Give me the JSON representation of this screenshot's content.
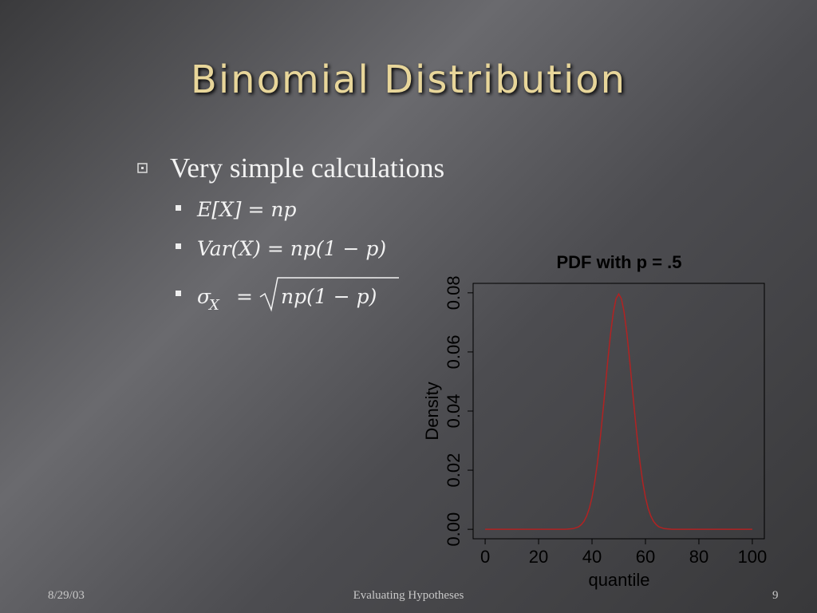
{
  "slide": {
    "title": "Binomial Distribution",
    "bullet": "Very simple calculations",
    "sub_bullets": [
      "E[X] = np",
      "Var(X) = np(1 − p)"
    ],
    "sigma": {
      "symbol": "σ",
      "subscript": "X",
      "equals": "=",
      "radicand": "np(1 − p)"
    },
    "footer": {
      "date": "8/29/03",
      "center": "Evaluating Hypotheses",
      "page": "9"
    }
  },
  "chart_data": {
    "type": "line",
    "title": "PDF with p = .5",
    "x_label": "quantile",
    "y_label": "Density",
    "color": "#b22222",
    "x": [
      0,
      10,
      20,
      30,
      33,
      35,
      36,
      37,
      38,
      39,
      40,
      41,
      42,
      43,
      44,
      45,
      46,
      47,
      48,
      49,
      50,
      51,
      52,
      53,
      54,
      55,
      56,
      57,
      58,
      59,
      60,
      61,
      62,
      63,
      64,
      65,
      67,
      70,
      80,
      90,
      100
    ],
    "values": [
      0,
      0,
      0,
      2e-05,
      0.00023,
      0.00086,
      0.0016,
      0.0027,
      0.0045,
      0.0071,
      0.0108,
      0.0159,
      0.0223,
      0.0301,
      0.039,
      0.0485,
      0.058,
      0.0666,
      0.0735,
      0.078,
      0.0796,
      0.078,
      0.0735,
      0.0666,
      0.058,
      0.0485,
      0.039,
      0.0301,
      0.0223,
      0.0159,
      0.0108,
      0.0071,
      0.0045,
      0.0027,
      0.0016,
      0.00086,
      0.00023,
      2e-05,
      0,
      0,
      0
    ],
    "xlim": [
      -4.5,
      104.5
    ],
    "ylim": [
      -0.0032,
      0.0832
    ],
    "xticks": [
      0,
      20,
      40,
      60,
      80,
      100
    ],
    "yticks": [
      {
        "value": 0,
        "label": "0.00"
      },
      {
        "value": 0.02,
        "label": "0.02"
      },
      {
        "value": 0.04,
        "label": "0.04"
      },
      {
        "value": 0.06,
        "label": "0.06"
      },
      {
        "value": 0.08,
        "label": "0.08"
      }
    ]
  }
}
